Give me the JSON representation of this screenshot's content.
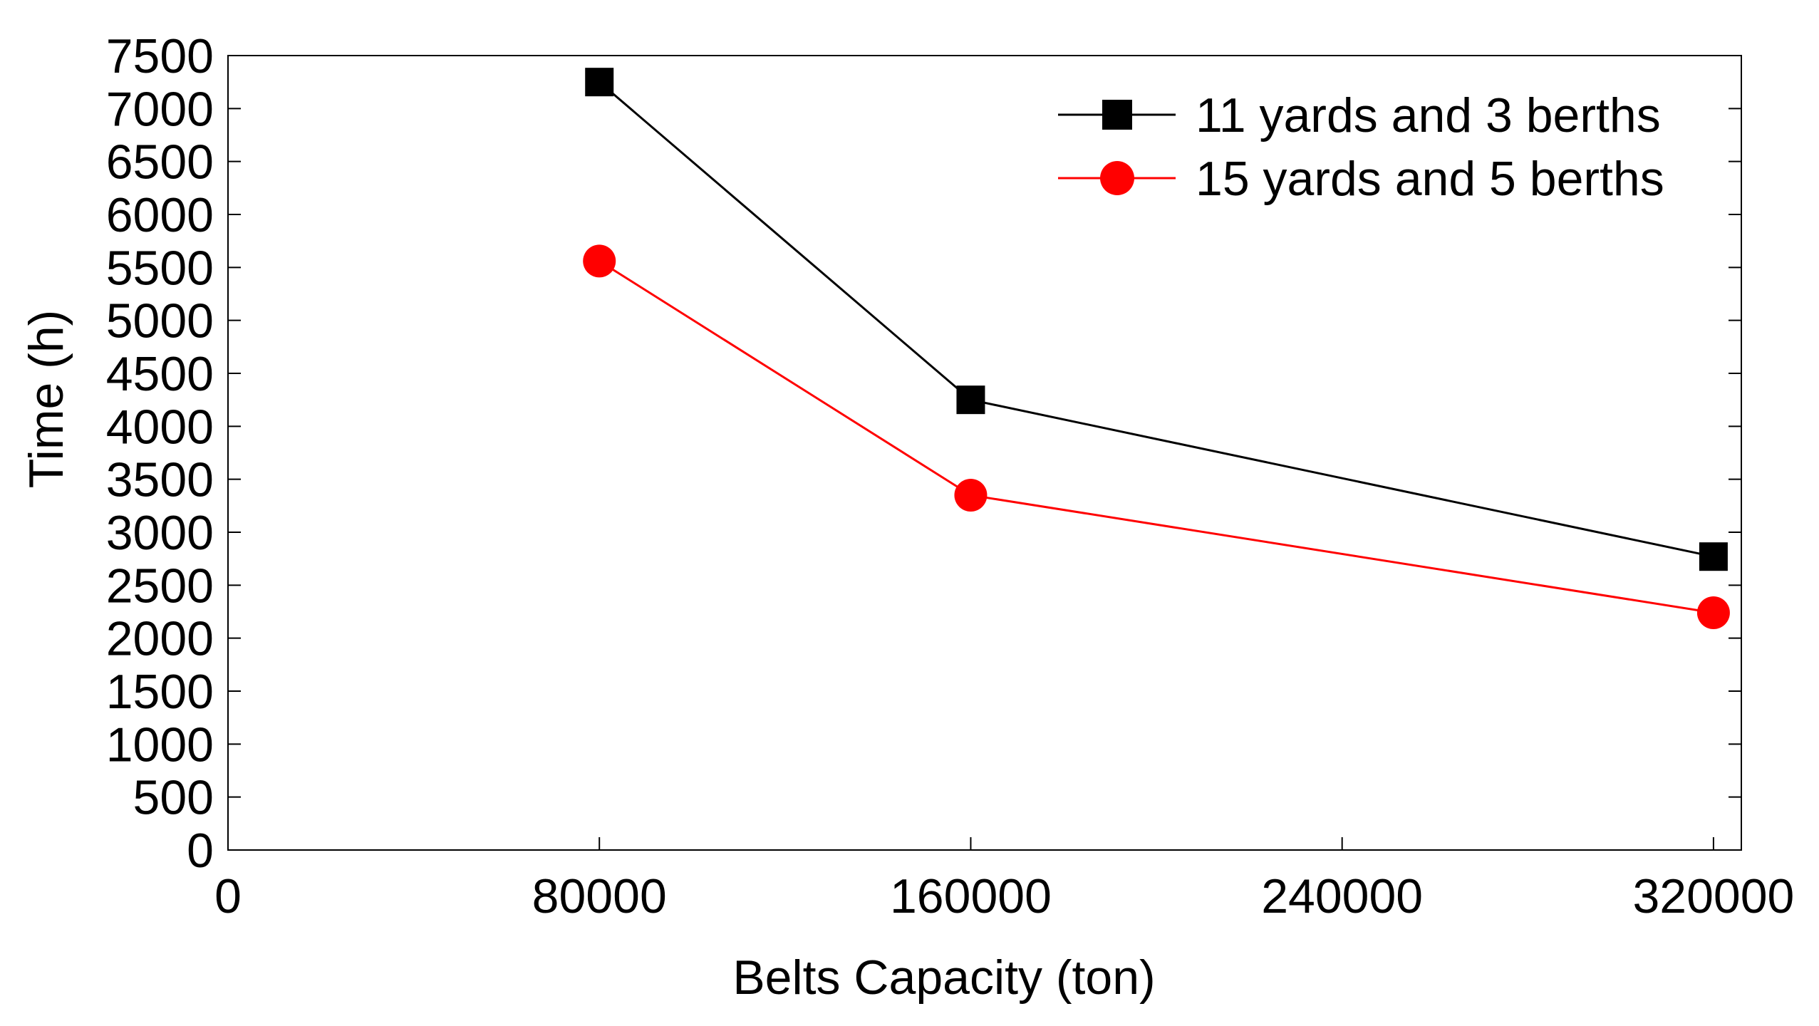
{
  "chart_data": {
    "type": "line",
    "title": "",
    "xlabel": "Belts Capacity (ton)",
    "ylabel": "Time (h)",
    "xlim": [
      0,
      326000
    ],
    "ylim": [
      0,
      7500
    ],
    "xticks": [
      0,
      80000,
      160000,
      240000,
      320000
    ],
    "xtick_labels": [
      "0",
      "80000",
      "160000",
      "240000",
      "320000"
    ],
    "yticks": [
      0,
      500,
      1000,
      1500,
      2000,
      2500,
      3000,
      3500,
      4000,
      4500,
      5000,
      5500,
      6000,
      6500,
      7000,
      7500
    ],
    "ytick_labels": [
      "0",
      "500",
      "1000",
      "1500",
      "2000",
      "2500",
      "3000",
      "3500",
      "4000",
      "4500",
      "5000",
      "5500",
      "6000",
      "6500",
      "7000",
      "7500"
    ],
    "grid": false,
    "legend_position": "top-right",
    "series": [
      {
        "name": "11 yards and 3 berths",
        "color": "#000000",
        "marker": "square",
        "x": [
          80000,
          160000,
          320000
        ],
        "y": [
          7250,
          4250,
          2770
        ]
      },
      {
        "name": "15 yards and 5 berths",
        "color": "#ff0000",
        "marker": "circle",
        "x": [
          80000,
          160000,
          320000
        ],
        "y": [
          5560,
          3350,
          2240
        ]
      }
    ]
  }
}
